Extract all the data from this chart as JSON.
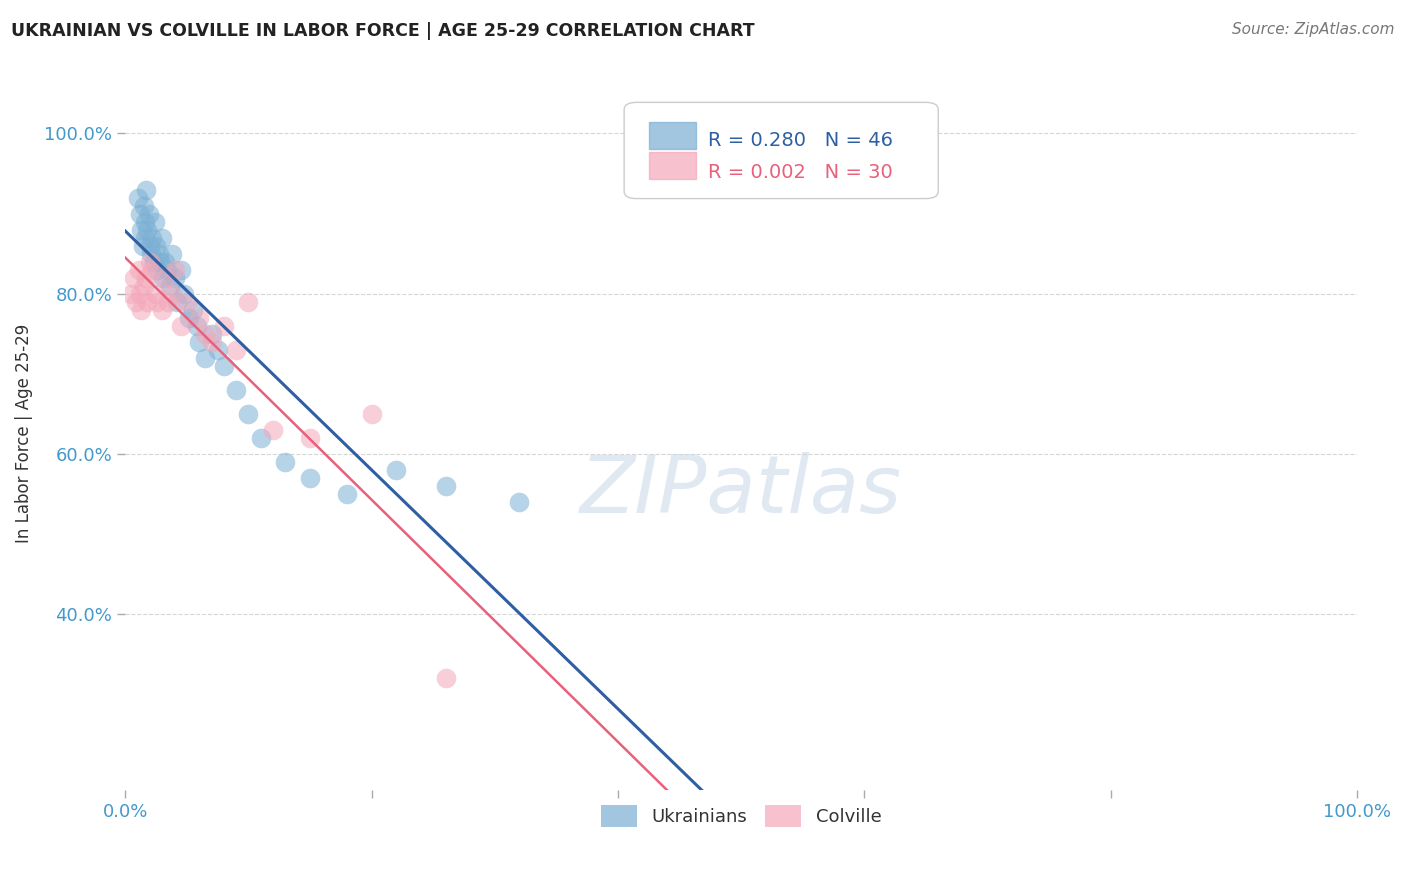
{
  "title": "UKRAINIAN VS COLVILLE IN LABOR FORCE | AGE 25-29 CORRELATION CHART",
  "source": "Source: ZipAtlas.com",
  "ylabel": "In Labor Force | Age 25-29",
  "y_tick_labels": [
    "40.0%",
    "60.0%",
    "80.0%",
    "100.0%"
  ],
  "y_tick_values": [
    0.4,
    0.6,
    0.8,
    1.0
  ],
  "x_tick_labels": [
    "0.0%",
    "100.0%"
  ],
  "x_ticks_minor": [
    0.0,
    0.2,
    0.4,
    0.6,
    0.8,
    1.0
  ],
  "xlim": [
    0.0,
    1.0
  ],
  "ylim": [
    0.18,
    1.07
  ],
  "R_ukrainian": 0.28,
  "N_ukrainian": 46,
  "R_colville": 0.002,
  "N_colville": 30,
  "blue_color": "#7BAFD4",
  "pink_color": "#F4A7B9",
  "blue_line_color": "#2E5FA3",
  "pink_line_color": "#E8607A",
  "axis_label_color": "#4499CC",
  "title_color": "#222222",
  "source_color": "#777777",
  "watermark_color": "#C8D8E8",
  "background_color": "#FFFFFF",
  "grid_color": "#CCCCCC",
  "ukrainians_x": [
    0.01,
    0.012,
    0.013,
    0.014,
    0.015,
    0.016,
    0.016,
    0.017,
    0.018,
    0.019,
    0.02,
    0.021,
    0.022,
    0.023,
    0.024,
    0.025,
    0.026,
    0.027,
    0.028,
    0.03,
    0.031,
    0.032,
    0.034,
    0.036,
    0.038,
    0.04,
    0.042,
    0.045,
    0.048,
    0.052,
    0.055,
    0.058,
    0.06,
    0.065,
    0.07,
    0.075,
    0.08,
    0.09,
    0.1,
    0.11,
    0.13,
    0.15,
    0.18,
    0.22,
    0.26,
    0.32
  ],
  "ukrainians_y": [
    0.92,
    0.9,
    0.88,
    0.86,
    0.91,
    0.89,
    0.87,
    0.93,
    0.88,
    0.9,
    0.86,
    0.85,
    0.87,
    0.84,
    0.89,
    0.86,
    0.83,
    0.85,
    0.84,
    0.87,
    0.82,
    0.84,
    0.83,
    0.81,
    0.85,
    0.82,
    0.79,
    0.83,
    0.8,
    0.77,
    0.78,
    0.76,
    0.74,
    0.72,
    0.75,
    0.73,
    0.71,
    0.68,
    0.65,
    0.62,
    0.59,
    0.57,
    0.55,
    0.58,
    0.56,
    0.54
  ],
  "colville_x": [
    0.005,
    0.007,
    0.009,
    0.011,
    0.012,
    0.013,
    0.015,
    0.017,
    0.018,
    0.02,
    0.022,
    0.024,
    0.026,
    0.03,
    0.032,
    0.035,
    0.038,
    0.04,
    0.045,
    0.05,
    0.06,
    0.065,
    0.07,
    0.08,
    0.09,
    0.1,
    0.12,
    0.15,
    0.2,
    0.26
  ],
  "colville_y": [
    0.8,
    0.82,
    0.79,
    0.83,
    0.8,
    0.78,
    0.81,
    0.82,
    0.79,
    0.84,
    0.83,
    0.8,
    0.79,
    0.78,
    0.82,
    0.79,
    0.8,
    0.83,
    0.76,
    0.79,
    0.77,
    0.75,
    0.74,
    0.76,
    0.73,
    0.79,
    0.63,
    0.62,
    0.65,
    0.32
  ]
}
